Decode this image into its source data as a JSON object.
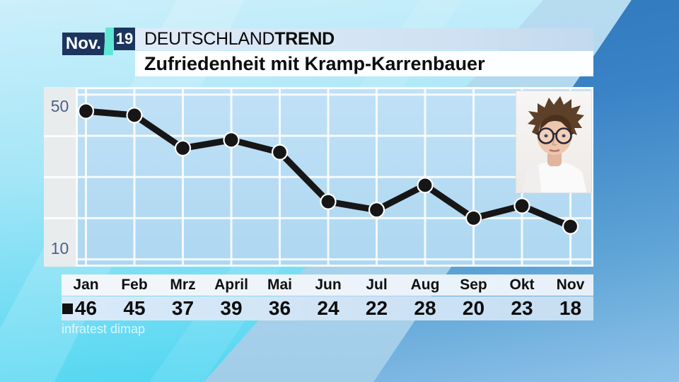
{
  "badge": {
    "month": "Nov.",
    "day": "19"
  },
  "header": {
    "brand_regular": "DEUTSCHLAND",
    "brand_bold": "TREND",
    "subtitle": "Zufriedenheit mit Kramp-Karrenbauer"
  },
  "chart_data": {
    "type": "line",
    "title": "Zufriedenheit mit Kramp-Karrenbauer",
    "categories": [
      "Jan",
      "Feb",
      "Mrz",
      "April",
      "Mai",
      "Jun",
      "Jul",
      "Aug",
      "Sep",
      "Okt",
      "Nov"
    ],
    "values": [
      46,
      45,
      37,
      39,
      36,
      24,
      22,
      28,
      20,
      23,
      18
    ],
    "xlabel": "",
    "ylabel": "",
    "ylim": [
      8,
      52
    ],
    "grid": "on",
    "legend": "none",
    "marker": "■",
    "y_axis": {
      "top_label": "50",
      "bottom_label": "10",
      "gridline_values": [
        50,
        40,
        30,
        20,
        10
      ]
    }
  },
  "source": {
    "label": "infratest dimap"
  },
  "colors": {
    "navy": "#1c355e",
    "teal": "#5fe6d4",
    "plot_bg": "#b9dcf3",
    "line": "#161616",
    "grid_white": "rgba(255,255,255,0.85)",
    "cyan": "#3ed2f0",
    "blue": "#2e78be"
  }
}
